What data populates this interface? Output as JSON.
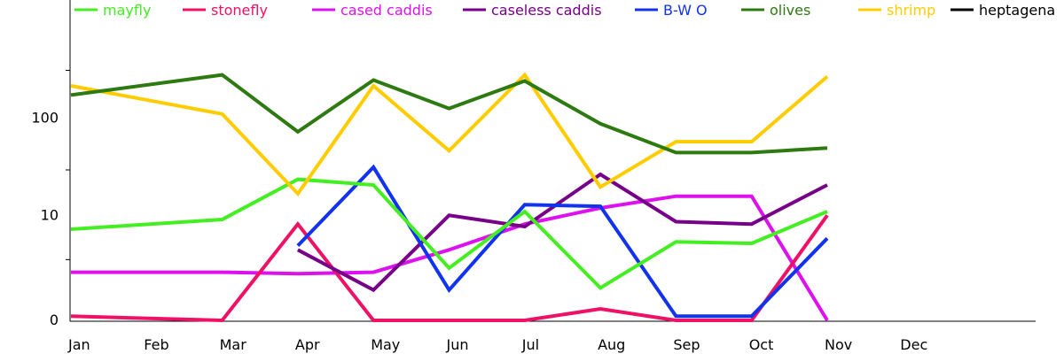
{
  "chart_data": {
    "type": "line",
    "title": "",
    "xlabel": "",
    "ylabel": "",
    "y_scale": "log1p",
    "y_ticks": [
      0,
      10,
      100
    ],
    "ylim": [
      0,
      270
    ],
    "grid": false,
    "legend_position": "top",
    "categories": [
      "Jan",
      "Feb",
      "Mar",
      "Apr",
      "May",
      "Jun",
      "Jul",
      "Aug",
      "Sep",
      "Oct",
      "Nov",
      "Dec"
    ],
    "series": [
      {
        "name": "mayfly",
        "color": "#44ee22",
        "values": [
          7,
          null,
          9,
          24,
          21,
          2.3,
          11,
          1.1,
          5,
          4.8,
          11,
          null
        ]
      },
      {
        "name": "stonefly",
        "color": "#ee1166",
        "values": [
          0.1,
          null,
          0,
          8,
          0,
          0,
          0,
          0.3,
          0,
          0,
          10,
          null
        ]
      },
      {
        "name": "cased caddis",
        "color": "#dd11ee",
        "values": [
          2,
          null,
          2,
          1.9,
          2,
          4,
          8,
          12,
          16,
          16,
          0,
          null
        ]
      },
      {
        "name": "caseless caddis",
        "color": "#770088",
        "values": [
          null,
          null,
          null,
          4,
          1,
          10,
          7.5,
          27,
          8.5,
          8,
          21,
          null
        ]
      },
      {
        "name": "B-W O",
        "color": "#1133ee",
        "values": [
          null,
          null,
          null,
          4.5,
          32,
          1,
          13,
          12.5,
          0.1,
          0.1,
          5.5,
          null
        ]
      },
      {
        "name": "olives",
        "color": "#2d7a11",
        "values": [
          170,
          null,
          270,
          73,
          240,
          125,
          235,
          88,
          45,
          45,
          50,
          null
        ]
      },
      {
        "name": "shrimp",
        "color": "#ffcc00",
        "values": [
          210,
          null,
          110,
          17,
          210,
          47,
          270,
          20,
          58,
          58,
          260,
          null
        ]
      },
      {
        "name": "heptagena",
        "color": "#000000",
        "values": [
          null,
          null,
          null,
          null,
          null,
          null,
          null,
          null,
          null,
          null,
          null,
          null
        ]
      }
    ]
  }
}
